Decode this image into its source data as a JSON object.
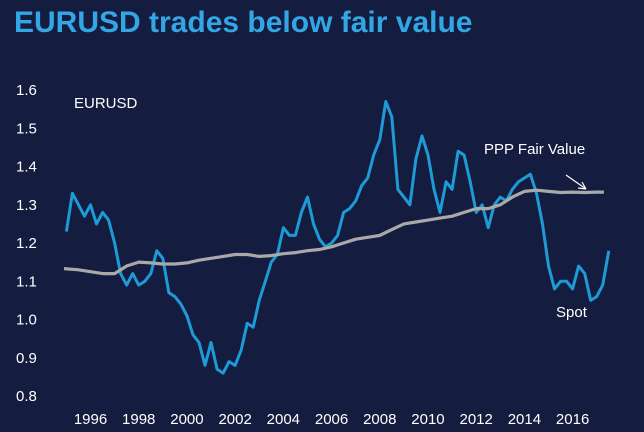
{
  "colors": {
    "background": "#141c3f",
    "title": "#33a7e6",
    "spot": "#1e9ad6",
    "fair_value": "#a9a9a9",
    "text": "#ffffff"
  },
  "chart_data": {
    "type": "line",
    "title": "EURUSD trades below fair value",
    "ylabel": "",
    "xlabel": "",
    "xlim": [
      1994.9,
      2017.8
    ],
    "ylim": [
      0.8,
      1.6
    ],
    "yticks": [
      {
        "value": 0.8,
        "label": "0.8"
      },
      {
        "value": 0.9,
        "label": "0.9"
      },
      {
        "value": 1.0,
        "label": "1.0"
      },
      {
        "value": 1.1,
        "label": "1.1"
      },
      {
        "value": 1.2,
        "label": "1.2"
      },
      {
        "value": 1.3,
        "label": "1.3"
      },
      {
        "value": 1.4,
        "label": "1.4"
      },
      {
        "value": 1.5,
        "label": "1.5"
      },
      {
        "value": 1.6,
        "label": "1.6"
      }
    ],
    "xticks": [
      {
        "value": 1996,
        "label": "1996"
      },
      {
        "value": 1998,
        "label": "1998"
      },
      {
        "value": 2000,
        "label": "2000"
      },
      {
        "value": 2002,
        "label": "2002"
      },
      {
        "value": 2004,
        "label": "2004"
      },
      {
        "value": 2006,
        "label": "2006"
      },
      {
        "value": 2008,
        "label": "2008"
      },
      {
        "value": 2010,
        "label": "2010"
      },
      {
        "value": 2012,
        "label": "2012"
      },
      {
        "value": 2014,
        "label": "2014"
      },
      {
        "value": 2016,
        "label": "2016"
      }
    ],
    "grid": false,
    "annotations": {
      "series_label": "EURUSD",
      "fair_value_label": "PPP Fair Value",
      "spot_label": "Spot"
    },
    "series": [
      {
        "name": "Spot",
        "x": [
          1995.0,
          1995.25,
          1995.5,
          1995.75,
          1996.0,
          1996.25,
          1996.5,
          1996.75,
          1997.0,
          1997.25,
          1997.5,
          1997.75,
          1998.0,
          1998.25,
          1998.5,
          1998.75,
          1999.0,
          1999.25,
          1999.5,
          1999.75,
          2000.0,
          2000.25,
          2000.5,
          2000.75,
          2001.0,
          2001.25,
          2001.5,
          2001.75,
          2002.0,
          2002.25,
          2002.5,
          2002.75,
          2003.0,
          2003.25,
          2003.5,
          2003.75,
          2004.0,
          2004.25,
          2004.5,
          2004.75,
          2005.0,
          2005.25,
          2005.5,
          2005.75,
          2006.0,
          2006.25,
          2006.5,
          2006.75,
          2007.0,
          2007.25,
          2007.5,
          2007.75,
          2008.0,
          2008.25,
          2008.5,
          2008.75,
          2009.0,
          2009.25,
          2009.5,
          2009.75,
          2010.0,
          2010.25,
          2010.5,
          2010.75,
          2011.0,
          2011.25,
          2011.5,
          2011.75,
          2012.0,
          2012.25,
          2012.5,
          2012.75,
          2013.0,
          2013.25,
          2013.5,
          2013.75,
          2014.0,
          2014.25,
          2014.5,
          2014.75,
          2015.0,
          2015.25,
          2015.5,
          2015.75,
          2016.0,
          2016.25,
          2016.5,
          2016.75,
          2017.0,
          2017.25,
          2017.5
        ],
        "y": [
          1.23,
          1.33,
          1.3,
          1.27,
          1.3,
          1.25,
          1.28,
          1.26,
          1.2,
          1.12,
          1.09,
          1.12,
          1.09,
          1.1,
          1.12,
          1.18,
          1.16,
          1.07,
          1.06,
          1.04,
          1.01,
          0.96,
          0.94,
          0.88,
          0.94,
          0.87,
          0.86,
          0.89,
          0.88,
          0.92,
          0.99,
          0.98,
          1.05,
          1.1,
          1.15,
          1.17,
          1.24,
          1.22,
          1.22,
          1.28,
          1.32,
          1.25,
          1.21,
          1.19,
          1.2,
          1.22,
          1.28,
          1.29,
          1.31,
          1.35,
          1.37,
          1.43,
          1.47,
          1.57,
          1.53,
          1.34,
          1.32,
          1.3,
          1.42,
          1.48,
          1.43,
          1.34,
          1.28,
          1.36,
          1.34,
          1.44,
          1.43,
          1.36,
          1.28,
          1.3,
          1.24,
          1.3,
          1.32,
          1.31,
          1.34,
          1.36,
          1.37,
          1.38,
          1.33,
          1.25,
          1.14,
          1.08,
          1.1,
          1.1,
          1.08,
          1.14,
          1.12,
          1.05,
          1.06,
          1.09,
          1.18
        ]
      },
      {
        "name": "PPP Fair Value",
        "x": [
          1994.9,
          1995.5,
          1996.0,
          1996.5,
          1997.0,
          1997.5,
          1998.0,
          1998.5,
          1999.0,
          1999.5,
          2000.0,
          2000.5,
          2001.0,
          2001.5,
          2002.0,
          2002.5,
          2003.0,
          2003.5,
          2004.0,
          2004.5,
          2005.0,
          2005.5,
          2006.0,
          2006.5,
          2007.0,
          2007.5,
          2008.0,
          2008.5,
          2009.0,
          2009.5,
          2010.0,
          2010.5,
          2011.0,
          2011.5,
          2012.0,
          2012.5,
          2013.0,
          2013.5,
          2014.0,
          2014.5,
          2015.0,
          2015.5,
          2016.0,
          2016.5,
          2017.0,
          2017.3
        ],
        "y": [
          1.133,
          1.13,
          1.125,
          1.12,
          1.12,
          1.14,
          1.15,
          1.148,
          1.145,
          1.145,
          1.148,
          1.155,
          1.16,
          1.165,
          1.17,
          1.17,
          1.165,
          1.167,
          1.172,
          1.175,
          1.18,
          1.183,
          1.19,
          1.2,
          1.21,
          1.215,
          1.22,
          1.235,
          1.25,
          1.255,
          1.26,
          1.265,
          1.27,
          1.28,
          1.29,
          1.29,
          1.3,
          1.32,
          1.335,
          1.338,
          1.335,
          1.332,
          1.333,
          1.332,
          1.333,
          1.333
        ]
      }
    ]
  }
}
